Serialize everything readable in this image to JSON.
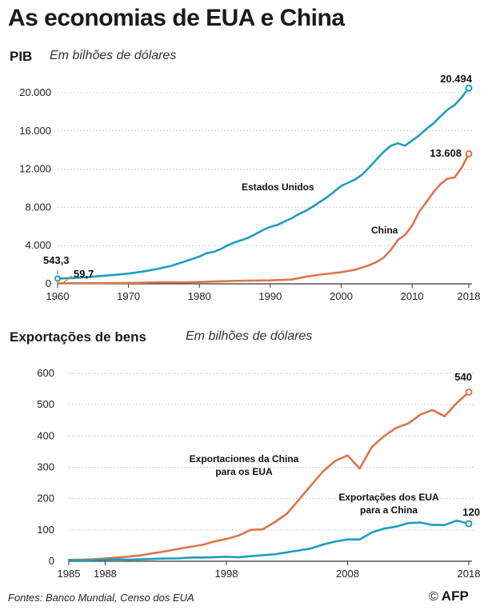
{
  "title": "As economias de EUA e China",
  "colors": {
    "usa": "#1f9dbb",
    "china": "#d9764a",
    "grid": "#bfbfbf",
    "axis": "#333333"
  },
  "footer": {
    "source": "Fontes: Banco Mundial, Censo dos EUA",
    "copyright": "©",
    "agency": "AFP"
  },
  "chart_data": [
    {
      "type": "line",
      "title": "PIB",
      "subtitle": "Em bilhões de dólares",
      "xlim": [
        1960,
        2018
      ],
      "ylim": [
        0,
        20000
      ],
      "x_ticks": [
        "1960",
        "1970",
        "1980",
        "1990",
        "2000",
        "2010",
        "2018"
      ],
      "y_ticks": [
        "0",
        "4.000",
        "8.000",
        "12.000",
        "16.000",
        "20.000"
      ],
      "grid": true,
      "series": [
        {
          "name": "Estados Unidos",
          "color": "#1f9dbb",
          "x": [
            1960,
            1962,
            1964,
            1966,
            1968,
            1970,
            1972,
            1974,
            1976,
            1978,
            1980,
            1981,
            1982,
            1983,
            1984,
            1985,
            1986,
            1987,
            1988,
            1989,
            1990,
            1991,
            1992,
            1993,
            1994,
            1995,
            1996,
            1997,
            1998,
            1999,
            2000,
            2001,
            2002,
            2003,
            2004,
            2005,
            2006,
            2007,
            2008,
            2009,
            2010,
            2011,
            2012,
            2013,
            2014,
            2015,
            2016,
            2017,
            2018
          ],
          "y": [
            543.3,
            605,
            685,
            815,
            940,
            1073,
            1280,
            1545,
            1877,
            2352,
            2857,
            3207,
            3343,
            3634,
            4037,
            4339,
            4580,
            4855,
            5236,
            5642,
            5963,
            6158,
            6520,
            6858,
            7287,
            7640,
            8073,
            8578,
            9063,
            9631,
            10252,
            10582,
            10936,
            11458,
            12214,
            13037,
            13815,
            14452,
            14713,
            14449,
            14992,
            15543,
            16197,
            16785,
            17527,
            18225,
            18715,
            19519,
            20494
          ],
          "labels": [
            {
              "x": 1960,
              "text": "543,3"
            },
            {
              "x": 2018,
              "text": "20.494"
            }
          ]
        },
        {
          "name": "China",
          "color": "#d9764a",
          "x": [
            1960,
            1965,
            1970,
            1975,
            1978,
            1980,
            1985,
            1990,
            1993,
            1995,
            1997,
            2000,
            2002,
            2004,
            2005,
            2006,
            2007,
            2008,
            2009,
            2010,
            2011,
            2012,
            2013,
            2014,
            2015,
            2016,
            2017,
            2018
          ],
          "y": [
            59.7,
            70,
            92,
            163,
            150,
            191,
            310,
            361,
            445,
            734,
            962,
            1211,
            1471,
            1956,
            2286,
            2752,
            3552,
            4598,
            5110,
            6087,
            7552,
            8532,
            9570,
            10439,
            11016,
            11138,
            12144,
            13608
          ],
          "labels": [
            {
              "x": 1960,
              "text": "59,7"
            },
            {
              "x": 2018,
              "text": "13.608"
            }
          ]
        }
      ]
    },
    {
      "type": "line",
      "title": "Exportações de bens",
      "subtitle": "Em bilhões de dólares",
      "xlim": [
        1985,
        2018
      ],
      "ylim": [
        0,
        600
      ],
      "x_ticks": [
        "1985",
        "1988",
        "1998",
        "2008",
        "2018"
      ],
      "y_ticks": [
        "0",
        "100",
        "200",
        "300",
        "400",
        "500",
        "600"
      ],
      "grid": true,
      "series": [
        {
          "name": "Exportaciones da China para os EUA",
          "color": "#d9764a",
          "x": [
            1985,
            1986,
            1987,
            1988,
            1989,
            1990,
            1991,
            1992,
            1993,
            1994,
            1995,
            1996,
            1997,
            1998,
            1999,
            2000,
            2001,
            2002,
            2003,
            2004,
            2005,
            2006,
            2007,
            2008,
            2009,
            2010,
            2011,
            2012,
            2013,
            2014,
            2015,
            2016,
            2017,
            2018
          ],
          "y": [
            4,
            5,
            6,
            9,
            12,
            15,
            19,
            26,
            32,
            39,
            46,
            52,
            63,
            71,
            82,
            100,
            102,
            125,
            152,
            197,
            243,
            288,
            321,
            338,
            296,
            365,
            399,
            426,
            440,
            468,
            483,
            463,
            505,
            540
          ],
          "labels": [
            {
              "x": 2018,
              "text": "540"
            }
          ]
        },
        {
          "name": "Exportações dos EUA para a China",
          "color": "#1f9dbb",
          "x": [
            1985,
            1986,
            1987,
            1988,
            1989,
            1990,
            1991,
            1992,
            1993,
            1994,
            1995,
            1996,
            1997,
            1998,
            1999,
            2000,
            2001,
            2002,
            2003,
            2004,
            2005,
            2006,
            2007,
            2008,
            2009,
            2010,
            2011,
            2012,
            2013,
            2014,
            2015,
            2016,
            2017,
            2018
          ],
          "y": [
            4,
            3,
            3.5,
            5,
            6,
            5,
            6,
            7.5,
            8.8,
            9.3,
            11.8,
            12,
            12.9,
            14.3,
            13.1,
            16.2,
            19.2,
            22.1,
            28.4,
            34.4,
            41.2,
            53.7,
            62.9,
            69.7,
            69.5,
            91.9,
            104.1,
            110.5,
            121.7,
            123.7,
            115.9,
            115.6,
            129.9,
            120
          ],
          "labels": [
            {
              "x": 2018,
              "text": "120"
            }
          ]
        }
      ]
    }
  ]
}
